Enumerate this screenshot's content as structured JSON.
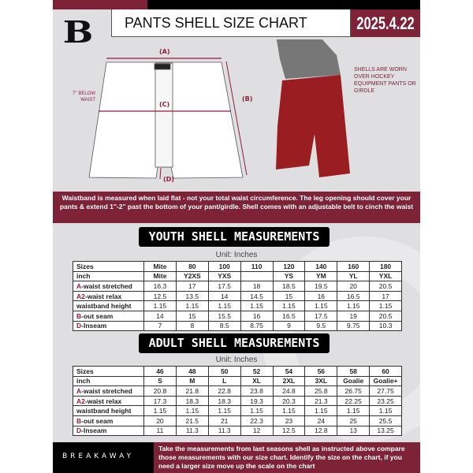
{
  "header": {
    "title": "PANTS SHELL SIZE CHART",
    "date": "2025.4.22",
    "logo": "B"
  },
  "diagram": {
    "label_a": "(A)",
    "label_b": "(B)",
    "label_c": "(C)",
    "label_d": "(D)",
    "below_waist": "7'' BELOW WAIST",
    "shells_note": "SHELLS ARE WORN OVER HOCKEY EQUIPMENT PANTS OR GIRDLE"
  },
  "notice": "Waistband is measured when laid flat - not your total waist circumference. The leg opening should cover your pants & extend 1''-2'' past the bottom of your pant/girdle. Shell comes with an adjustable belt to cinch the waist",
  "youth": {
    "title": "YOUTH SHELL MEASUREMENTS",
    "unit": "Unit: Inches",
    "rows": [
      {
        "m": "",
        "l": "Sizes",
        "v": [
          "Mite",
          "80",
          "100",
          "110",
          "120",
          "140",
          "160",
          "180"
        ]
      },
      {
        "m": "",
        "l": "inch",
        "v": [
          "Mite",
          "Y2XS",
          "YXS",
          "",
          "YS",
          "YM",
          "YL",
          "YXL"
        ]
      },
      {
        "m": "A",
        "l": "-waist stretched",
        "v": [
          "16.3",
          "17",
          "17.5",
          "18",
          "18.5",
          "19.5",
          "20",
          "20.5"
        ]
      },
      {
        "m": "A2",
        "l": "-waist relax",
        "v": [
          "12.5",
          "13.5",
          "14",
          "14.5",
          "15",
          "16",
          "16.5",
          "17"
        ]
      },
      {
        "m": "",
        "l": "waistband height",
        "v": [
          "1.15",
          "1.15",
          "1.15",
          "1.15",
          "1.15",
          "1.15",
          "1.15",
          "1.15"
        ]
      },
      {
        "m": "B",
        "l": "-out seam",
        "v": [
          "14",
          "15",
          "15.5",
          "16",
          "16.5",
          "17.5",
          "19",
          "20.5"
        ]
      },
      {
        "m": "D",
        "l": "-Inseam",
        "v": [
          "7",
          "8",
          "8.5",
          "8.75",
          "9",
          "9.5",
          "9.75",
          "10.3"
        ]
      }
    ]
  },
  "adult": {
    "title": "ADULT SHELL MEASUREMENTS",
    "unit": "Unit: Inches",
    "rows": [
      {
        "m": "",
        "l": "Sizes",
        "v": [
          "46",
          "48",
          "50",
          "52",
          "54",
          "56",
          "58",
          "60"
        ]
      },
      {
        "m": "",
        "l": "inch",
        "v": [
          "S",
          "M",
          "L",
          "XL",
          "2XL",
          "3XL",
          "Goalie",
          "Goalie+"
        ]
      },
      {
        "m": "A",
        "l": "-waist stretched",
        "v": [
          "20.8",
          "21.8",
          "22.8",
          "23.8",
          "24.8",
          "25.8",
          "26.75",
          "27.75"
        ]
      },
      {
        "m": "A2",
        "l": "-waist relax",
        "v": [
          "17.3",
          "18.3",
          "18.3",
          "19.3",
          "20.3",
          "21.3",
          "22.25",
          "23.25"
        ]
      },
      {
        "m": "",
        "l": "waistband height",
        "v": [
          "1.15",
          "1.15",
          "1.15",
          "1.15",
          "1.15",
          "1.15",
          "1.15",
          "1.15"
        ]
      },
      {
        "m": "B",
        "l": "-out seam",
        "v": [
          "20",
          "21.5",
          "21",
          "22.3",
          "23",
          "24",
          "25",
          "25.5"
        ]
      },
      {
        "m": "D",
        "l": "-Inseam",
        "v": [
          "11",
          "11.3",
          "11.3",
          "12",
          "12.5",
          "12.8",
          "13",
          "13.25"
        ]
      }
    ]
  },
  "footer": {
    "brand": "BREAKAWAY",
    "instructions": "Take the measurements from last seasons shell as instructed above compare those measurements with our size chart. Identify the size on the chart, if you need a larger size move up the scale on the chart"
  },
  "colors": {
    "maroon": "#7d2237",
    "black": "#000000",
    "background": "#dfdfe2"
  }
}
